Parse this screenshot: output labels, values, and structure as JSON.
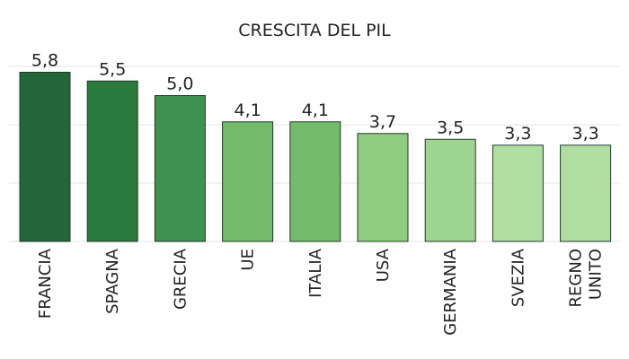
{
  "chart_data": {
    "type": "bar",
    "title": "CRESCITA DEL PIL",
    "categories": [
      [
        "FRANCIA"
      ],
      [
        "SPAGNA"
      ],
      [
        "GRECIA"
      ],
      [
        "UE"
      ],
      [
        "ITALIA"
      ],
      [
        "USA"
      ],
      [
        "GERMANIA"
      ],
      [
        "SVEZIA"
      ],
      [
        "REGNO",
        "UNITO"
      ]
    ],
    "values": [
      5.8,
      5.5,
      5.0,
      4.1,
      4.1,
      3.7,
      3.5,
      3.3,
      3.3
    ],
    "value_labels": [
      "5,8",
      "5,5",
      "5,0",
      "4,1",
      "4,1",
      "3,7",
      "3,5",
      "3,3",
      "3,3"
    ],
    "colors": [
      "#23663a",
      "#2a7a3d",
      "#3e9150",
      "#72bb6a",
      "#73bc6b",
      "#8fcc80",
      "#9dd490",
      "#b0dea2",
      "#b0dea2"
    ],
    "ylim": [
      0,
      6
    ],
    "gridlines": [
      0,
      2,
      4,
      6
    ],
    "legend": "none",
    "xlabel": "",
    "ylabel": ""
  }
}
